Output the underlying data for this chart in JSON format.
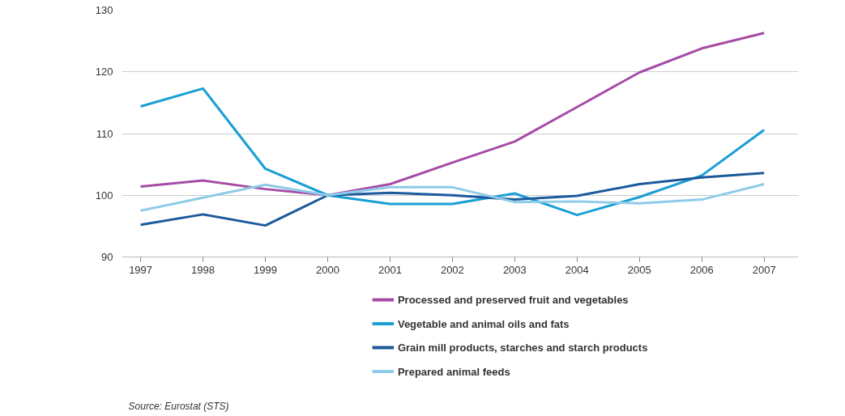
{
  "chart_data": {
    "type": "line",
    "x": [
      1997,
      1998,
      1999,
      2000,
      2001,
      2002,
      2003,
      2004,
      2005,
      2006,
      2007
    ],
    "xlim": [
      1996.7,
      2007.55
    ],
    "xticks": [
      1997,
      1998,
      1999,
      2000,
      2001,
      2002,
      2003,
      2004,
      2005,
      2006,
      2007
    ],
    "ylim": [
      90,
      130
    ],
    "yticks": [
      90,
      100,
      110,
      120,
      130
    ],
    "grid": "y",
    "legend": "bottom",
    "marker": "none",
    "line_style": "solid",
    "series": [
      {
        "name": "Processed and preserved fruit and vegetables",
        "color": "#a64ca6",
        "values": [
          101.4,
          102.4,
          101,
          100,
          101.8,
          105.3,
          108.7,
          114.3,
          119.9,
          123.8,
          126.3
        ]
      },
      {
        "name": "Vegetable and animal oils and fats",
        "color": "#1a9fd4",
        "values": [
          114.4,
          117.3,
          104.3,
          100,
          98.6,
          98.6,
          100.3,
          96.8,
          99.7,
          103.2,
          110.6
        ]
      },
      {
        "name": "Grain mill products, starches and starch products",
        "color": "#1c5a9c",
        "values": [
          95.2,
          96.9,
          95.1,
          100,
          100.4,
          100,
          99.3,
          99.9,
          101.8,
          102.9,
          103.6
        ]
      },
      {
        "name": "Prepared animal feeds",
        "color": "#8fcbe8",
        "values": [
          97.5,
          99.6,
          101.7,
          100,
          101.3,
          101.3,
          98.9,
          99,
          98.7,
          99.3,
          101.8
        ]
      }
    ],
    "annotations": [
      "Source: Eurostat (STS)"
    ]
  }
}
